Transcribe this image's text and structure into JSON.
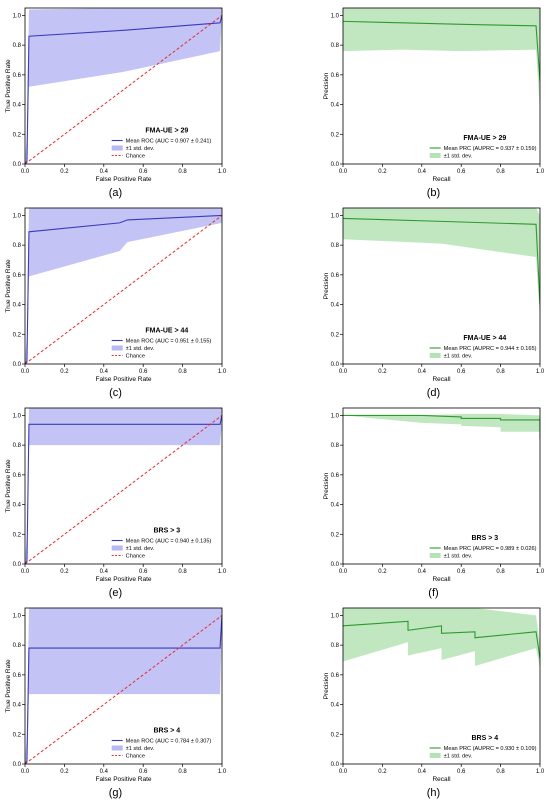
{
  "colors": {
    "roc_line": "#3b3bbf",
    "roc_band": "#b8b8f5",
    "prc_line": "#2e9a2e",
    "prc_band": "#b5e3b5",
    "chance": "#e03030",
    "axis": "#000000"
  },
  "chart_data": [
    {
      "panel_label": "(a)",
      "type": "line",
      "title": "FMA-UE > 29",
      "xlabel": "False Positive Rate",
      "ylabel": "True Positive Rate",
      "xlim": [
        0,
        1
      ],
      "ylim": [
        0,
        1.05
      ],
      "xticks": [
        "0.0",
        "0.2",
        "0.4",
        "0.6",
        "0.8",
        "1.0"
      ],
      "yticks": [
        "0.0",
        "0.2",
        "0.4",
        "0.6",
        "0.8",
        "1.0"
      ],
      "legend": {
        "position": "lower-right",
        "entries": [
          "Mean ROC (AUC = 0.907 ± 0.241)",
          "±1 std. dev.",
          "Chance"
        ]
      },
      "series": [
        {
          "name": "Mean ROC (AUC = 0.907 ± 0.241)",
          "role": "mean",
          "x": [
            0,
            0.01,
            0.02,
            0.5,
            0.99,
            1.0
          ],
          "y": [
            0,
            0.02,
            0.86,
            0.9,
            0.95,
            1.0
          ],
          "upper": [
            0.03,
            0.2,
            1.04,
            1.05,
            1.05,
            1.05
          ],
          "lower": [
            0,
            0,
            0.52,
            0.62,
            0.76,
            1.0
          ]
        },
        {
          "name": "Chance",
          "role": "chance",
          "x": [
            0,
            1
          ],
          "y": [
            0,
            1
          ]
        }
      ]
    },
    {
      "panel_label": "(b)",
      "type": "line",
      "title": "FMA-UE > 29",
      "xlabel": "Recall",
      "ylabel": "Precision",
      "xlim": [
        0,
        1
      ],
      "ylim": [
        0,
        1.05
      ],
      "xticks": [
        "0.0",
        "0.2",
        "0.4",
        "0.6",
        "0.8",
        "1.0"
      ],
      "yticks": [
        "0.0",
        "0.2",
        "0.4",
        "0.6",
        "0.8",
        "1.0"
      ],
      "legend": {
        "position": "lower-right",
        "entries": [
          "Mean PRC (AUPRC = 0.937 ± 0.159)",
          "±1 std. dev."
        ]
      },
      "series": [
        {
          "name": "Mean PRC (AUPRC = 0.937 ± 0.159)",
          "role": "mean",
          "x": [
            0,
            0.3,
            0.6,
            0.98,
            1.0,
            1.0
          ],
          "y": [
            0.96,
            0.95,
            0.94,
            0.93,
            0.56,
            0.56
          ],
          "upper": [
            1.05,
            1.05,
            1.05,
            1.05,
            1.05,
            0.7
          ],
          "lower": [
            0.76,
            0.77,
            0.76,
            0.77,
            0.35,
            0.35
          ]
        }
      ]
    },
    {
      "panel_label": "(c)",
      "type": "line",
      "title": "FMA-UE > 44",
      "xlabel": "False Positive Rate",
      "ylabel": "True Positive Rate",
      "xlim": [
        0,
        1
      ],
      "ylim": [
        0,
        1.05
      ],
      "xticks": [
        "0.0",
        "0.2",
        "0.4",
        "0.6",
        "0.8",
        "1.0"
      ],
      "yticks": [
        "0.0",
        "0.2",
        "0.4",
        "0.6",
        "0.8",
        "1.0"
      ],
      "legend": {
        "position": "lower-right",
        "entries": [
          "Mean ROC (AUC = 0.951 ± 0.155)",
          "±1 std. dev.",
          "Chance"
        ]
      },
      "series": [
        {
          "name": "Mean ROC (AUC = 0.951 ± 0.155)",
          "role": "mean",
          "x": [
            0,
            0.01,
            0.02,
            0.48,
            0.52,
            1.0
          ],
          "y": [
            0,
            0.02,
            0.89,
            0.95,
            0.97,
            1.0
          ],
          "upper": [
            0.03,
            0.2,
            1.05,
            1.05,
            1.05,
            1.05
          ],
          "lower": [
            0,
            0,
            0.59,
            0.76,
            0.82,
            0.95
          ]
        },
        {
          "name": "Chance",
          "role": "chance",
          "x": [
            0,
            1
          ],
          "y": [
            0,
            1
          ]
        }
      ]
    },
    {
      "panel_label": "(d)",
      "type": "line",
      "title": "FMA-UE > 44",
      "xlabel": "Recall",
      "ylabel": "Precision",
      "xlim": [
        0,
        1
      ],
      "ylim": [
        0,
        1.05
      ],
      "xticks": [
        "0.0",
        "0.2",
        "0.4",
        "0.6",
        "0.8",
        "1.0"
      ],
      "yticks": [
        "0.0",
        "0.2",
        "0.4",
        "0.6",
        "0.8",
        "1.0"
      ],
      "legend": {
        "position": "lower-right",
        "entries": [
          "Mean PRC (AUPRC = 0.944 ± 0.165)",
          "±1 std. dev."
        ]
      },
      "series": [
        {
          "name": "Mean PRC (AUPRC = 0.944 ± 0.165)",
          "role": "mean",
          "x": [
            0,
            0.5,
            0.98,
            1.0,
            1.0
          ],
          "y": [
            0.98,
            0.96,
            0.94,
            0.4,
            0.4
          ],
          "upper": [
            1.05,
            1.05,
            1.05,
            1.0,
            0.6
          ],
          "lower": [
            0.84,
            0.81,
            0.72,
            0.3,
            0.3
          ]
        }
      ]
    },
    {
      "panel_label": "(e)",
      "type": "line",
      "title": "BRS > 3",
      "xlabel": "False Positive Rate",
      "ylabel": "True Positive Rate",
      "xlim": [
        0,
        1
      ],
      "ylim": [
        0,
        1.05
      ],
      "xticks": [
        "0.0",
        "0.2",
        "0.4",
        "0.6",
        "0.8",
        "1.0"
      ],
      "yticks": [
        "0.0",
        "0.2",
        "0.4",
        "0.6",
        "0.8",
        "1.0"
      ],
      "legend": {
        "position": "lower-right",
        "entries": [
          "Mean ROC (AUC = 0.940 ± 0.135)",
          "±1 std. dev.",
          "Chance"
        ]
      },
      "series": [
        {
          "name": "Mean ROC (AUC = 0.940 ± 0.135)",
          "role": "mean",
          "x": [
            0,
            0.01,
            0.02,
            0.99,
            1.0
          ],
          "y": [
            0,
            0.02,
            0.94,
            0.94,
            1.0
          ],
          "upper": [
            0.03,
            0.2,
            1.05,
            1.05,
            1.05
          ],
          "lower": [
            0,
            0,
            0.8,
            0.8,
            0.95
          ]
        },
        {
          "name": "Chance",
          "role": "chance",
          "x": [
            0,
            1
          ],
          "y": [
            0,
            1
          ]
        }
      ]
    },
    {
      "panel_label": "(f)",
      "type": "line",
      "title": "BRS > 3",
      "xlabel": "Recall",
      "ylabel": "Precision",
      "xlim": [
        0,
        1
      ],
      "ylim": [
        0,
        1.05
      ],
      "xticks": [
        "0.0",
        "0.2",
        "0.4",
        "0.6",
        "0.8",
        "1.0"
      ],
      "yticks": [
        "0.0",
        "0.2",
        "0.4",
        "0.6",
        "0.8",
        "1.0"
      ],
      "legend": {
        "position": "lower-right",
        "entries": [
          "Mean PRC (AUPRC = 0.989 ± 0.026)",
          "±1 std. dev."
        ]
      },
      "series": [
        {
          "name": "Mean PRC (AUPRC = 0.989 ± 0.026)",
          "role": "mean",
          "x": [
            0,
            0.4,
            0.6,
            0.6,
            0.8,
            0.8,
            1.0,
            1.0
          ],
          "y": [
            1.0,
            1.0,
            0.99,
            0.98,
            0.98,
            0.97,
            0.97,
            0.84
          ],
          "upper": [
            1.0,
            1.0,
            1.01,
            1.01,
            1.01,
            1.01,
            1.0,
            0.9
          ],
          "lower": [
            1.0,
            0.95,
            0.94,
            0.93,
            0.92,
            0.89,
            0.89,
            0.8
          ]
        }
      ]
    },
    {
      "panel_label": "(g)",
      "type": "line",
      "title": "BRS > 4",
      "xlabel": "False Positive Rate",
      "ylabel": "True Positive Rate",
      "xlim": [
        0,
        1
      ],
      "ylim": [
        0,
        1.05
      ],
      "xticks": [
        "0.0",
        "0.2",
        "0.4",
        "0.6",
        "0.8",
        "1.0"
      ],
      "yticks": [
        "0.0",
        "0.2",
        "0.4",
        "0.6",
        "0.8",
        "1.0"
      ],
      "legend": {
        "position": "lower-right",
        "entries": [
          "Mean ROC (AUC = 0.784 ± 0.307)",
          "±1 std. dev.",
          "Chance"
        ]
      },
      "series": [
        {
          "name": "Mean ROC (AUC = 0.784 ± 0.307)",
          "role": "mean",
          "x": [
            0,
            0.01,
            0.02,
            0.99,
            1.0
          ],
          "y": [
            0,
            0.02,
            0.78,
            0.78,
            1.0
          ],
          "upper": [
            0.03,
            0.2,
            1.05,
            1.05,
            1.05
          ],
          "lower": [
            0,
            0,
            0.47,
            0.47,
            0.95
          ]
        },
        {
          "name": "Chance",
          "role": "chance",
          "x": [
            0,
            1
          ],
          "y": [
            0,
            1
          ]
        }
      ]
    },
    {
      "panel_label": "(h)",
      "type": "line",
      "title": "BRS > 4",
      "xlabel": "Recall",
      "ylabel": "Precision",
      "xlim": [
        0,
        1
      ],
      "ylim": [
        0,
        1.05
      ],
      "xticks": [
        "0.0",
        "0.2",
        "0.4",
        "0.6",
        "0.8",
        "1.0"
      ],
      "yticks": [
        "0.0",
        "0.2",
        "0.4",
        "0.6",
        "0.8",
        "1.0"
      ],
      "legend": {
        "position": "lower-right",
        "entries": [
          "Mean PRC (AUPRC = 0.930 ± 0.109)",
          "±1 std. dev."
        ]
      },
      "series": [
        {
          "name": "Mean PRC (AUPRC = 0.930 ± 0.109)",
          "role": "mean",
          "x": [
            0,
            0.33,
            0.33,
            0.5,
            0.5,
            0.67,
            0.67,
            0.98,
            1.0
          ],
          "y": [
            0.93,
            0.96,
            0.9,
            0.93,
            0.88,
            0.89,
            0.85,
            0.89,
            0.71
          ],
          "upper": [
            1.05,
            1.05,
            1.05,
            1.05,
            1.05,
            1.05,
            1.05,
            1.0,
            0.8
          ],
          "lower": [
            0.69,
            0.82,
            0.73,
            0.78,
            0.7,
            0.76,
            0.66,
            0.78,
            0.64
          ]
        }
      ]
    }
  ]
}
